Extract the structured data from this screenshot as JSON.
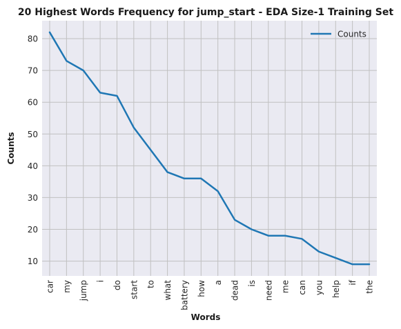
{
  "chart_data": {
    "type": "line",
    "title": "20 Highest Words Frequency for jump_start - EDA Size-1 Training Set",
    "xlabel": "Words",
    "ylabel": "Counts",
    "categories": [
      "car",
      "my",
      "jump",
      "i",
      "do",
      "start",
      "to",
      "what",
      "battery",
      "how",
      "a",
      "dead",
      "is",
      "need",
      "me",
      "can",
      "you",
      "help",
      "if",
      "the"
    ],
    "series": [
      {
        "name": "Counts",
        "values": [
          82,
          73,
          70,
          63,
          62,
          52,
          45,
          38,
          36,
          36,
          32,
          23,
          20,
          18,
          18,
          17,
          13,
          11,
          9,
          9
        ]
      }
    ],
    "yticks": [
      10,
      20,
      30,
      40,
      50,
      60,
      70,
      80
    ],
    "ylim": [
      5.35,
      85.65
    ],
    "grid": true,
    "legend_position": "top-right",
    "colors": {
      "line": "#1f77b4",
      "plot_background": "#eaeaf2",
      "grid": "#c0c0c0"
    }
  }
}
